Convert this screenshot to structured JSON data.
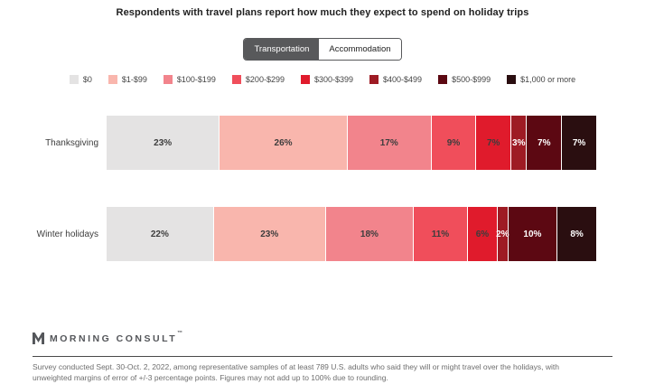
{
  "title": "Respondents with travel plans report how much they expect to spend on holiday trips",
  "toggle": {
    "options": [
      {
        "label": "Transportation",
        "selected": true
      },
      {
        "label": "Accommodation",
        "selected": false
      }
    ]
  },
  "chart_data": {
    "type": "bar",
    "stacked": true,
    "orientation": "horizontal",
    "value_format": "percent",
    "categories": [
      "Thanksgiving",
      "Winter holidays"
    ],
    "series": [
      {
        "name": "$0",
        "color": "#e4e3e3",
        "text_color": "#3d3d3d",
        "values": [
          23,
          22
        ]
      },
      {
        "name": "$1-$99",
        "color": "#f9b6ad",
        "text_color": "#3d3d3d",
        "values": [
          26,
          23
        ]
      },
      {
        "name": "$100-$199",
        "color": "#f2848c",
        "text_color": "#3d3d3d",
        "values": [
          17,
          18
        ]
      },
      {
        "name": "$200-$299",
        "color": "#f04e5b",
        "text_color": "#3d3d3d",
        "values": [
          9,
          11
        ]
      },
      {
        "name": "$300-$399",
        "color": "#e01b2c",
        "text_color": "#3d3d3d",
        "values": [
          7,
          6
        ]
      },
      {
        "name": "$400-$499",
        "color": "#9e1b24",
        "text_color": "#ffffff",
        "values": [
          3,
          2
        ]
      },
      {
        "name": "$500-$999",
        "color": "#5c0812",
        "text_color": "#ffffff",
        "values": [
          7,
          10
        ]
      },
      {
        "name": "$1,000 or more",
        "color": "#2a0e10",
        "text_color": "#ffffff",
        "values": [
          7,
          8
        ]
      }
    ],
    "legend_position": "top",
    "grid": false
  },
  "footer": {
    "logo_text": "MORNING CONSULT",
    "trademark": "™",
    "note_line1": "Survey conducted Sept. 30-Oct. 2, 2022, among representative samples of at least 789 U.S. adults who said they will or might travel over the holidays, with",
    "note_line2": "unweighted margins of error of +/-3 percentage points. Figures may not add up to 100% due to rounding."
  }
}
